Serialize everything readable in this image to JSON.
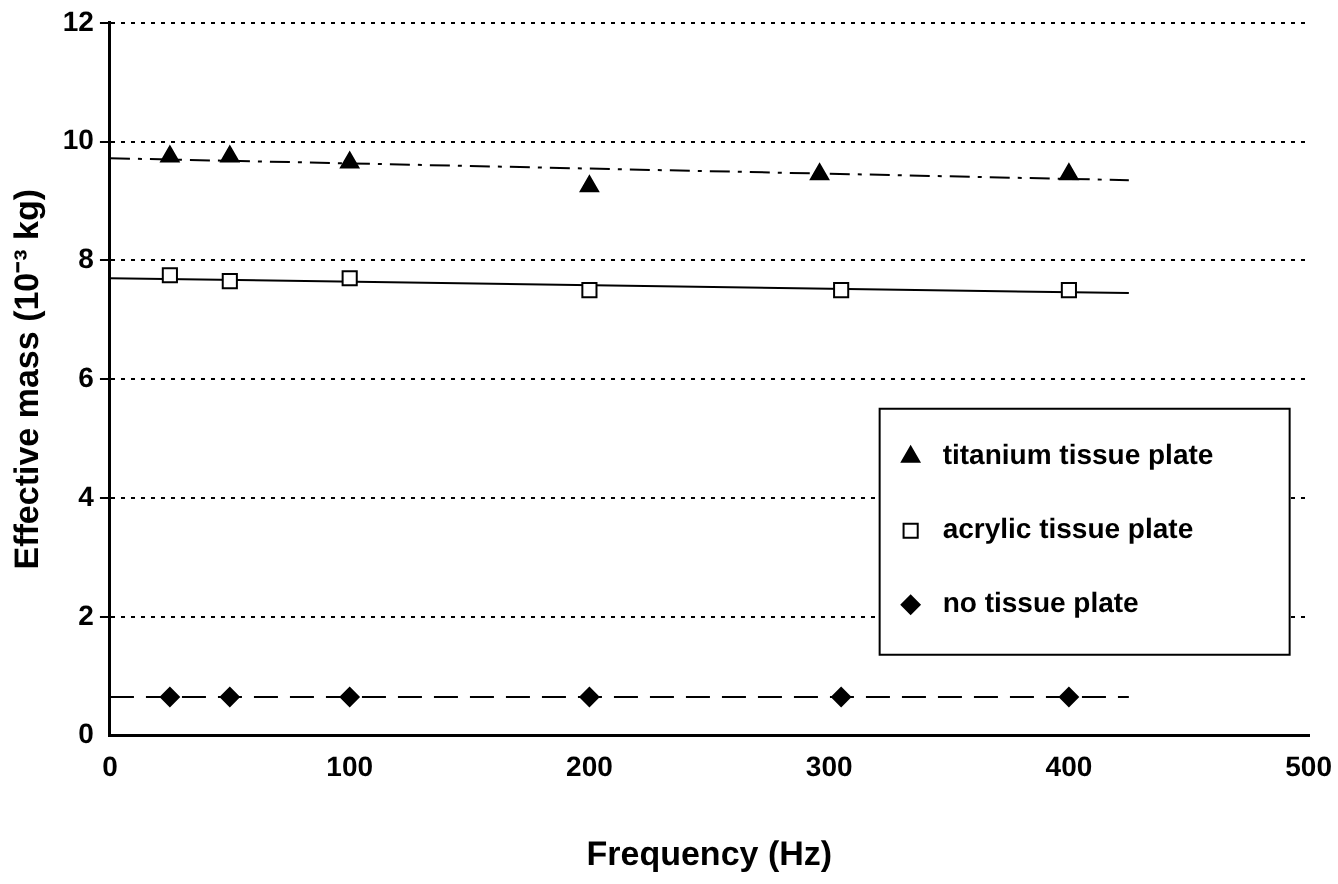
{
  "chart_data": {
    "type": "scatter",
    "xlabel": "Frequency (Hz)",
    "ylabel": "Effective mass (10⁻³ kg)",
    "xlim": [
      0,
      500
    ],
    "xticks": [
      0,
      100,
      200,
      300,
      400,
      500
    ],
    "ylim": [
      0,
      12
    ],
    "yticks": [
      0,
      2,
      4,
      6,
      8,
      10,
      12
    ],
    "grid": "y",
    "legend": "right",
    "series": [
      {
        "name": "titanium tissue plate",
        "color": "#000000",
        "marker": "triangle",
        "x": [
          25,
          50,
          100,
          200,
          296,
          400
        ],
        "values": [
          9.75,
          9.75,
          9.65,
          9.25,
          9.45,
          9.45
        ]
      },
      {
        "name": "acrylic tissue plate",
        "color": "#000000",
        "marker": "square",
        "x": [
          25,
          50,
          100,
          200,
          305,
          400
        ],
        "values": [
          7.75,
          7.65,
          7.7,
          7.5,
          7.5,
          7.5
        ]
      },
      {
        "name": "no tissue plate",
        "color": "#000000",
        "marker": "diamond",
        "x": [
          25,
          50,
          100,
          200,
          305,
          400
        ],
        "values": [
          0.65,
          0.65,
          0.65,
          0.65,
          0.65,
          0.65
        ]
      },
      {
        "type": "line",
        "color": "#000000",
        "line_style": "dashdot",
        "marker": "none",
        "x": [
          0,
          425
        ],
        "values": [
          9.72,
          9.35
        ]
      },
      {
        "type": "line",
        "color": "#000000",
        "line_style": "solid",
        "marker": "none",
        "x": [
          0,
          425
        ],
        "values": [
          7.7,
          7.45
        ]
      },
      {
        "type": "line",
        "color": "#000000",
        "line_style": "dashed",
        "marker": "none",
        "x": [
          0,
          425
        ],
        "values": [
          0.65,
          0.65
        ]
      }
    ]
  }
}
